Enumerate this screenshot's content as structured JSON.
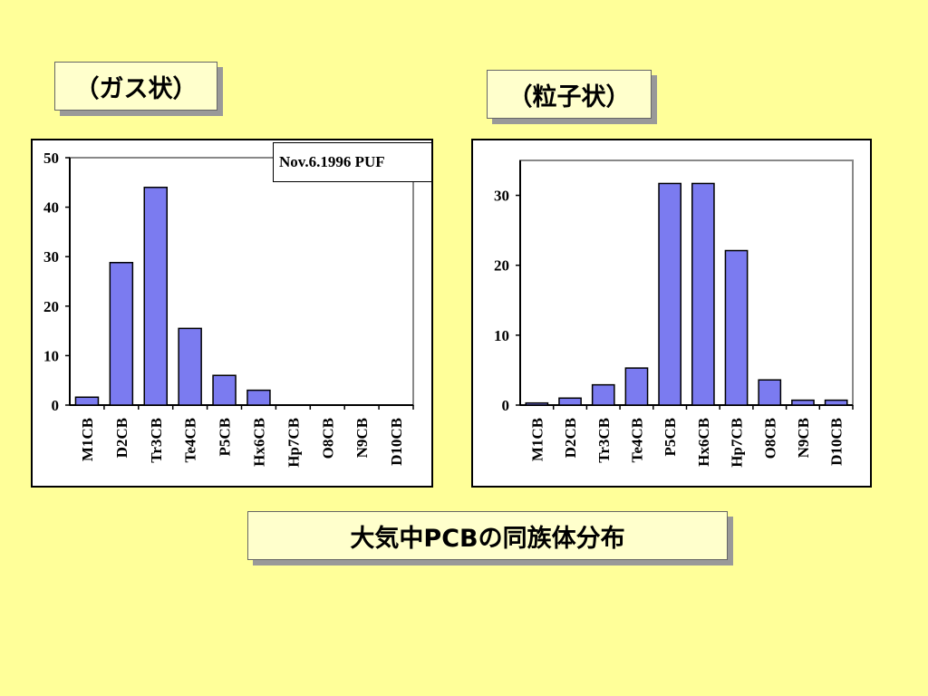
{
  "labels": {
    "gas": "（ガス状）",
    "particle": "（粒子状）",
    "caption": "大気中PCBの同族体分布"
  },
  "colors": {
    "background": "#FFFF99",
    "bar_fill": "#7B7BF0",
    "label_box": "#FFFFCC"
  },
  "chart_data": [
    {
      "type": "bar",
      "title": "（ガス状）",
      "annotation": "Nov.6.1996 PUF",
      "categories": [
        "M1CB",
        "D2CB",
        "Tr3CB",
        "Te4CB",
        "P5CB",
        "Hx6CB",
        "Hp7CB",
        "O8CB",
        "N9CB",
        "D10CB"
      ],
      "values": [
        1.6,
        28.8,
        44.0,
        15.5,
        6.0,
        3.0,
        0,
        0,
        0,
        0
      ],
      "ylim": [
        0,
        50
      ],
      "yticks": [
        0,
        10,
        20,
        30,
        40,
        50
      ],
      "grid": false,
      "xlabel": "",
      "ylabel": ""
    },
    {
      "type": "bar",
      "title": "（粒子状）",
      "categories": [
        "M1CB",
        "D2CB",
        "Tr3CB",
        "Te4CB",
        "P5CB",
        "Hx6CB",
        "Hp7CB",
        "O8CB",
        "N9CB",
        "D10CB"
      ],
      "values": [
        0.3,
        1.0,
        2.9,
        5.3,
        31.7,
        31.7,
        22.1,
        3.6,
        0.7,
        0.7
      ],
      "ylim": [
        0,
        35
      ],
      "yticks": [
        0,
        10,
        20,
        30
      ],
      "grid": false,
      "xlabel": "",
      "ylabel": ""
    }
  ]
}
